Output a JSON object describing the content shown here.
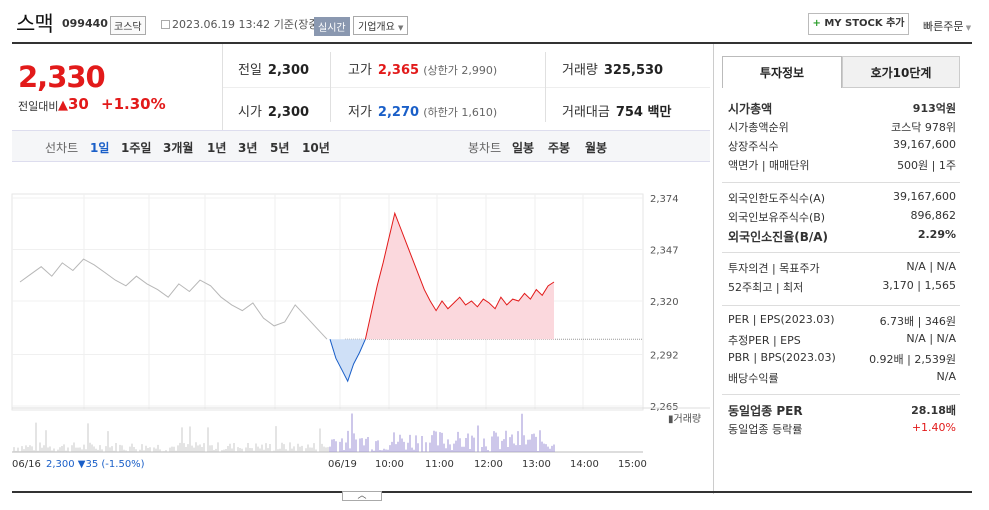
{
  "header": {
    "name": "스맥",
    "code": "099440",
    "market": "코스닥",
    "datetime": "2023.06.19 13:42",
    "basis": "기준(장중)",
    "realtime": "실시간",
    "company_info": "기업개요",
    "mystock": "MY STOCK 추가",
    "quick_order": "빠른주문"
  },
  "quote": {
    "price": "2,330",
    "change_label": "전일대비",
    "change_abs": "30",
    "change_pct": "+1.30%",
    "prev_label": "전일",
    "prev": "2,300",
    "open_label": "시가",
    "open": "2,300",
    "high_label": "고가",
    "high": "2,365",
    "upper_limit": "(상한가 2,990)",
    "low_label": "저가",
    "low": "2,270",
    "lower_limit": "(하한가 1,610)",
    "volume_label": "거래량",
    "volume": "325,530",
    "amount_label": "거래대금",
    "amount": "754 백만"
  },
  "tabs": {
    "line_label": "선차트",
    "line_periods": [
      "1일",
      "1주일",
      "3개월",
      "1년",
      "3년",
      "5년",
      "10년"
    ],
    "candle_label": "봉차트",
    "candle_periods": [
      "일봉",
      "주봉",
      "월봉"
    ]
  },
  "chart_data": {
    "type": "line",
    "y_ticks": [
      "2,374",
      "2,347",
      "2,320",
      "2,292",
      "2,265"
    ],
    "ylim": [
      2265,
      2374
    ],
    "x_ticks": [
      "06/16",
      "06/19",
      "10:00",
      "11:00",
      "12:00",
      "13:00",
      "14:00",
      "15:00"
    ],
    "reference_price": 2300,
    "volume_label": "거래량",
    "prev_day_summary": {
      "date": "06/16",
      "close": "2,300",
      "change": "▼35",
      "pct": "(-1.50%)"
    },
    "series": [
      {
        "values": [
          2330,
          2334,
          2338,
          2333,
          2340,
          2336,
          2342,
          2339,
          2335,
          2331,
          2328,
          2333,
          2329,
          2326,
          2322,
          2329,
          2325,
          2331,
          2328,
          2322,
          2318,
          2315,
          2319,
          2311,
          2307,
          2309,
          2318,
          2312,
          2306,
          2300
        ]
      },
      {
        "values": [
          2300,
          2290,
          2284,
          2278,
          2287,
          2293,
          2300,
          2314,
          2328,
          2340,
          2353,
          2366,
          2358,
          2350,
          2342,
          2334,
          2326,
          2320,
          2315,
          2320,
          2316,
          2319,
          2322,
          2318,
          2320,
          2317,
          2321,
          2319,
          2316,
          2322,
          2318,
          2321,
          2320,
          2324,
          2321,
          2326,
          2323,
          2328,
          2330
        ]
      }
    ]
  },
  "investment": {
    "tab1": "투자정보",
    "tab2": "호가10단계",
    "rows": [
      {
        "k": "시가총액",
        "v": "913억원",
        "bold": true
      },
      {
        "k": "시가총액순위",
        "v": "코스닥 978위"
      },
      {
        "k": "상장주식수",
        "v": "39,167,600"
      },
      {
        "k": "액면가 | 매매단위",
        "v": "500원 | 1주"
      }
    ],
    "rows2": [
      {
        "k": "외국인한도주식수(A)",
        "v": "39,167,600"
      },
      {
        "k": "외국인보유주식수(B)",
        "v": "896,862"
      },
      {
        "k": "외국인소진율(B/A)",
        "v": "2.29%",
        "bold": true
      }
    ],
    "rows3": [
      {
        "k": "투자의견 | 목표주가",
        "v": "N/A | N/A"
      },
      {
        "k": "52주최고 | 최저",
        "v": "3,170 | 1,565"
      }
    ],
    "rows4": [
      {
        "k": "PER | EPS(2023.03)",
        "v": "6.73배 | 346원"
      },
      {
        "k": "추정PER | EPS",
        "v": "N/A | N/A"
      },
      {
        "k": "PBR | BPS(2023.03)",
        "v": "0.92배 | 2,539원"
      },
      {
        "k": "배당수익률",
        "v": "N/A"
      }
    ],
    "rows5": [
      {
        "k": "동일업종 PER",
        "v": "28.18배",
        "bold": true
      },
      {
        "k": "동일업종 등락률",
        "v": "+1.40%",
        "red": true
      }
    ]
  }
}
